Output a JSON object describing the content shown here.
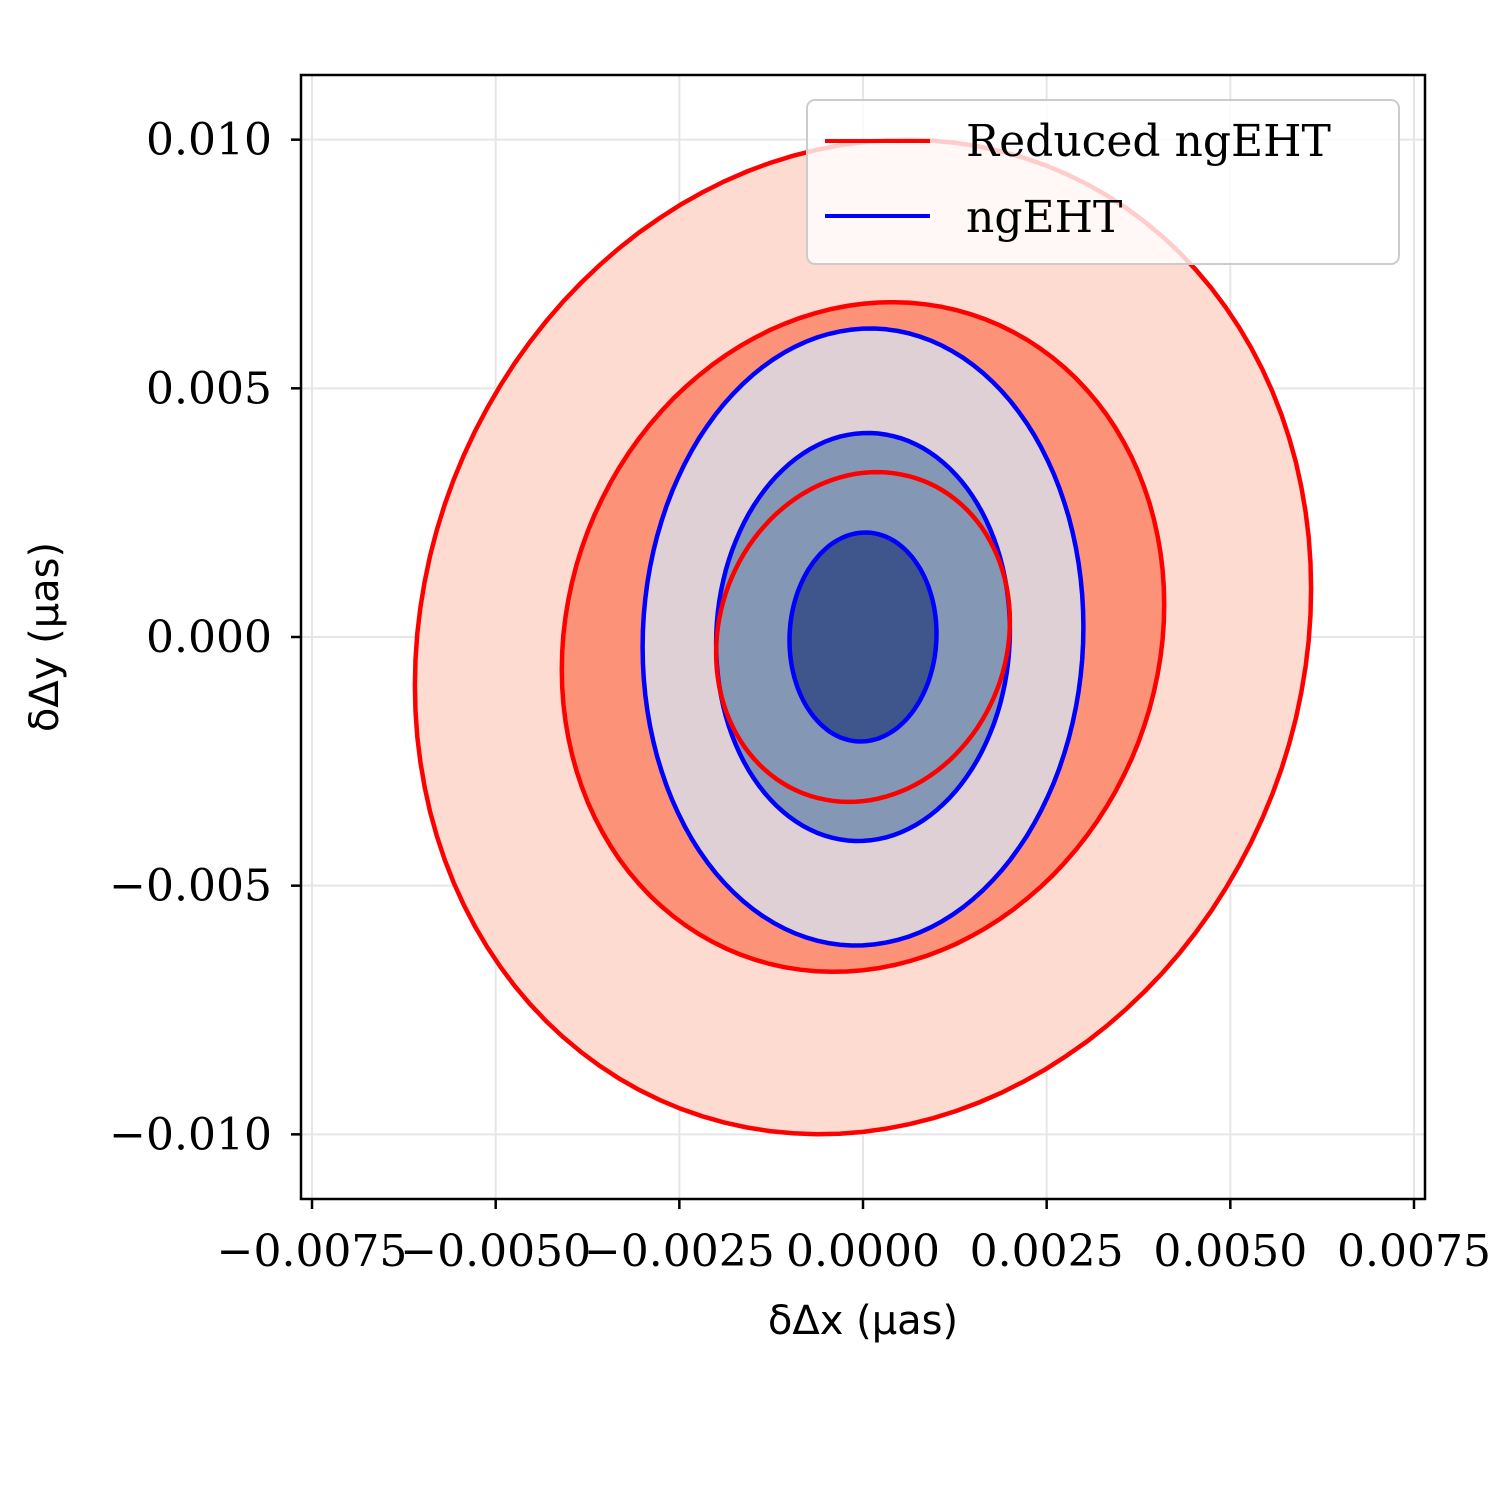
{
  "chart_data": {
    "type": "contour",
    "xlabel": "δΔx (μas)",
    "ylabel": "δΔy (μas)",
    "xlim": [
      -0.00765,
      0.00765
    ],
    "ylim": [
      -0.0113,
      0.0113
    ],
    "x_ticks": [
      -0.0075,
      -0.005,
      -0.0025,
      0.0,
      0.0025,
      0.005,
      0.0075
    ],
    "x_tick_labels": [
      "−0.0075",
      "−0.0050",
      "−0.0025",
      "0.0000",
      "0.0025",
      "0.0050",
      "0.0075"
    ],
    "y_ticks": [
      0.01,
      0.005,
      0.0,
      -0.005,
      -0.01
    ],
    "y_tick_labels": [
      "0.010",
      "0.005",
      "0.000",
      "−0.005",
      "−0.010"
    ],
    "grid": true,
    "legend_position": "upper right",
    "legend": [
      {
        "label": "Reduced ngEHT",
        "color": "#ff0000"
      },
      {
        "label": "ngEHT",
        "color": "#0000ff"
      }
    ],
    "series": [
      {
        "name": "Reduced ngEHT",
        "color": "#ff0000",
        "contours": [
          {
            "level": 3,
            "x_range": [
              -0.0061,
              0.0061
            ],
            "y_range": [
              -0.00995,
              0.00995
            ],
            "fill": "#fddbd0"
          },
          {
            "level": 2,
            "x_range": [
              -0.0041,
              0.0041
            ],
            "y_range": [
              -0.0067,
              0.0067
            ],
            "fill": "#fc9277"
          },
          {
            "level": 1,
            "x_range": [
              -0.002,
              0.002
            ],
            "y_range": [
              -0.0033,
              0.0033
            ],
            "fill": null
          }
        ]
      },
      {
        "name": "ngEHT",
        "color": "#0000ff",
        "contours": [
          {
            "level": 3,
            "x_range": [
              -0.003,
              0.003
            ],
            "y_range": [
              -0.0062,
              0.0062
            ],
            "fill": "#dfd0d5"
          },
          {
            "level": 2,
            "x_range": [
              -0.002,
              0.002
            ],
            "y_range": [
              -0.0041,
              0.0041
            ],
            "fill": "#8497b4"
          },
          {
            "level": 1,
            "x_range": [
              -0.001,
              0.001
            ],
            "y_range": [
              -0.0021,
              0.0021
            ],
            "fill": "#3e568b"
          }
        ]
      }
    ]
  }
}
